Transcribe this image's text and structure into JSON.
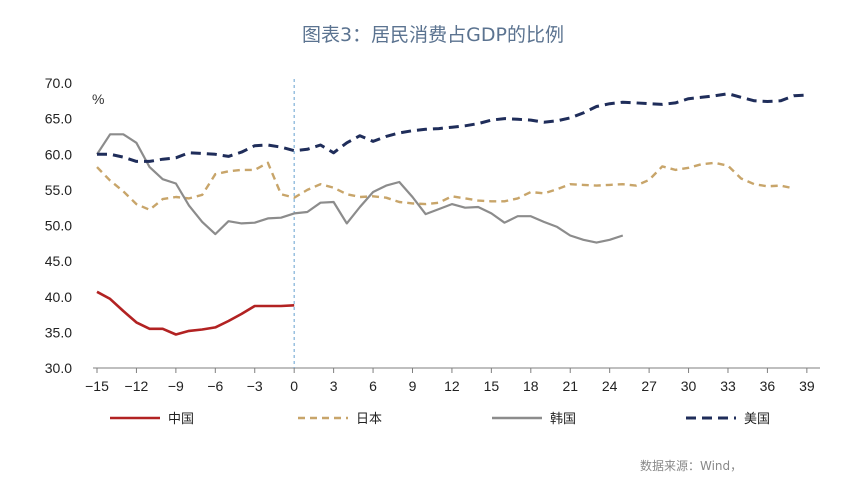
{
  "chart_data": {
    "type": "line",
    "title": "图表3：居民消费占GDP的比例",
    "unit_label": "%",
    "source": "数据来源：Wind，",
    "xlim": [
      -15,
      40
    ],
    "ylim": [
      30,
      70
    ],
    "x_ticks": [
      -15,
      -12,
      -9,
      -6,
      -3,
      0,
      3,
      6,
      9,
      12,
      15,
      18,
      21,
      24,
      27,
      30,
      33,
      36,
      39
    ],
    "y_ticks": [
      "30.0",
      "35.0",
      "40.0",
      "45.0",
      "50.0",
      "55.0",
      "60.0",
      "65.0",
      "70.0"
    ],
    "reference_line_x": 0,
    "legend_position": "bottom",
    "series": [
      {
        "name": "中国",
        "color": "#b22222",
        "dash": "solid",
        "x": [
          -15,
          -14,
          -13,
          -12,
          -11,
          -10,
          -9,
          -8,
          -7,
          -6,
          -5,
          -4,
          -3,
          -2,
          -1,
          0
        ],
        "y": [
          40.7,
          39.7,
          38.0,
          36.4,
          35.5,
          35.5,
          34.7,
          35.2,
          35.4,
          35.7,
          36.6,
          37.6,
          38.7,
          38.7,
          38.7,
          38.8
        ]
      },
      {
        "name": "日本",
        "color": "#c8a56a",
        "dash": "dashed",
        "x": [
          -15,
          -14,
          -13,
          -12,
          -11,
          -10,
          -9,
          -8,
          -7,
          -6,
          -5,
          -4,
          -3,
          -2,
          -1,
          0,
          1,
          2,
          3,
          4,
          5,
          6,
          7,
          8,
          9,
          10,
          11,
          12,
          13,
          14,
          15,
          16,
          17,
          18,
          19,
          20,
          21,
          22,
          23,
          24,
          25,
          26,
          27,
          28,
          29,
          30,
          31,
          32,
          33,
          34,
          35,
          36,
          37,
          38
        ],
        "y": [
          58.2,
          56.3,
          54.8,
          53.0,
          52.2,
          53.7,
          54.0,
          53.8,
          54.3,
          57.2,
          57.6,
          57.8,
          57.8,
          58.8,
          54.4,
          53.9,
          55.0,
          55.8,
          55.3,
          54.4,
          54.0,
          54.1,
          53.9,
          53.3,
          53.1,
          53.0,
          53.2,
          54.1,
          53.8,
          53.5,
          53.4,
          53.4,
          53.8,
          54.7,
          54.5,
          55.1,
          55.8,
          55.7,
          55.6,
          55.7,
          55.8,
          55.6,
          56.4,
          58.3,
          57.8,
          58.1,
          58.6,
          58.8,
          58.4,
          56.6,
          55.8,
          55.5,
          55.6,
          55.2
        ]
      },
      {
        "name": "韩国",
        "color": "#8c8c8c",
        "dash": "solid",
        "x": [
          -15,
          -14,
          -13,
          -12,
          -11,
          -10,
          -9,
          -8,
          -7,
          -6,
          -5,
          -4,
          -3,
          -2,
          -1,
          0,
          1,
          2,
          3,
          4,
          5,
          6,
          7,
          8,
          9,
          10,
          11,
          12,
          13,
          14,
          15,
          16,
          17,
          18,
          19,
          20,
          21,
          22,
          23,
          24,
          25
        ],
        "y": [
          60.0,
          62.8,
          62.8,
          61.6,
          58.2,
          56.5,
          55.9,
          52.8,
          50.5,
          48.8,
          50.6,
          50.3,
          50.4,
          51.0,
          51.1,
          51.7,
          51.9,
          53.2,
          53.3,
          50.3,
          52.6,
          54.7,
          55.6,
          56.1,
          54.0,
          51.6,
          52.3,
          53.0,
          52.5,
          52.6,
          51.7,
          50.4,
          51.3,
          51.3,
          50.5,
          49.8,
          48.6,
          48.0,
          47.6,
          48.0,
          48.6
        ]
      },
      {
        "name": "美国",
        "color": "#1f2d5a",
        "dash": "dashed",
        "x": [
          -15,
          -14,
          -13,
          -12,
          -11,
          -10,
          -9,
          -8,
          -7,
          -6,
          -5,
          -4,
          -3,
          -2,
          -1,
          0,
          1,
          2,
          3,
          4,
          5,
          6,
          7,
          8,
          9,
          10,
          11,
          12,
          13,
          14,
          15,
          16,
          17,
          18,
          19,
          20,
          21,
          22,
          23,
          24,
          25,
          26,
          27,
          28,
          29,
          30,
          31,
          32,
          33,
          34,
          35,
          36,
          37,
          38,
          39
        ],
        "y": [
          60.0,
          60.0,
          59.6,
          59.0,
          59.0,
          59.3,
          59.5,
          60.2,
          60.1,
          60.0,
          59.7,
          60.3,
          61.2,
          61.3,
          61.0,
          60.5,
          60.7,
          61.3,
          60.2,
          61.6,
          62.6,
          61.8,
          62.5,
          63.0,
          63.3,
          63.5,
          63.6,
          63.8,
          64.0,
          64.3,
          64.8,
          65.0,
          64.9,
          64.8,
          64.5,
          64.7,
          65.1,
          65.8,
          66.7,
          67.1,
          67.3,
          67.2,
          67.1,
          67.0,
          67.2,
          67.8,
          68.0,
          68.2,
          68.5,
          68.0,
          67.5,
          67.4,
          67.5,
          68.2,
          68.3
        ]
      }
    ]
  }
}
